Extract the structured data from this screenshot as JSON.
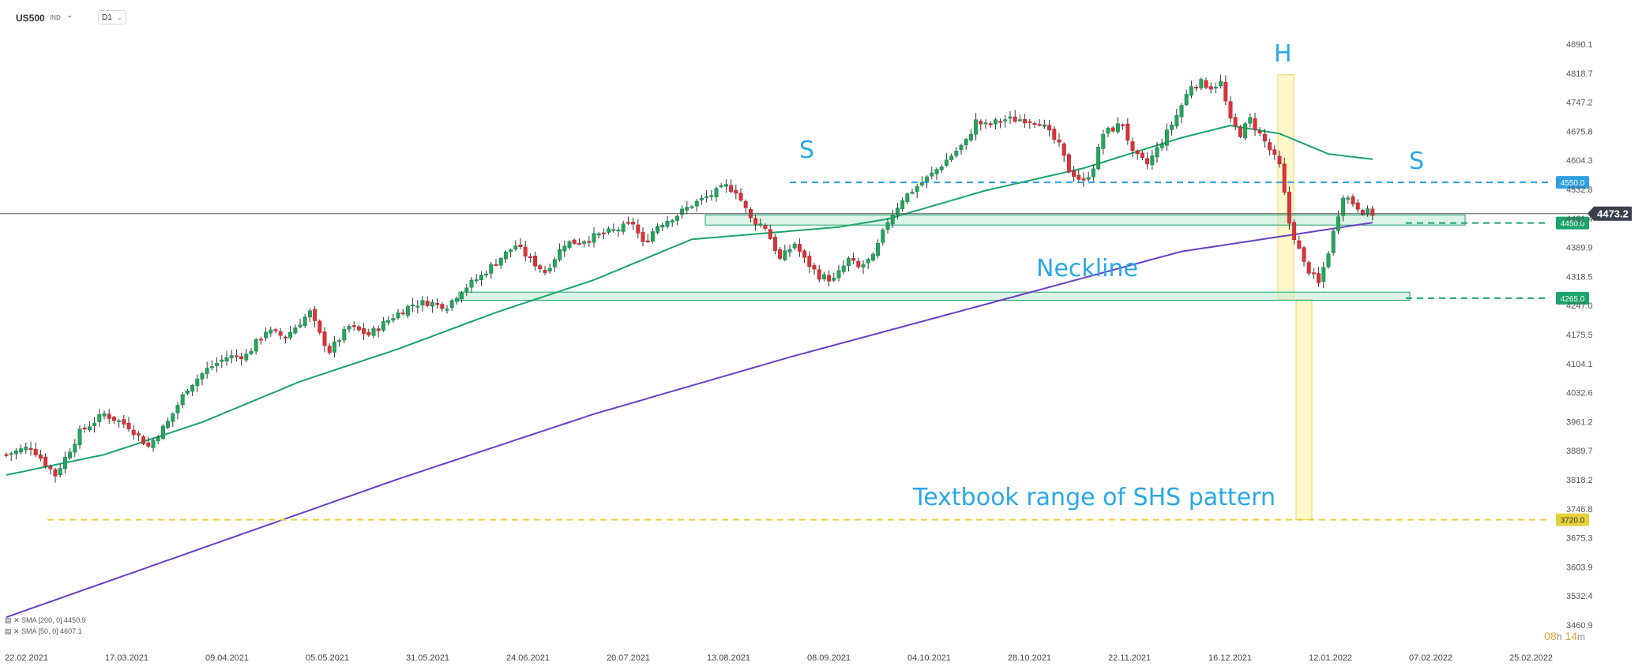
{
  "header": {
    "symbol": "US500",
    "symbol_type": "IND",
    "timeframe": "D1"
  },
  "indicators": [
    {
      "label": "SMA [200, 0]",
      "value": "4450.9",
      "color": "#6a3fc4"
    },
    {
      "label": "SMA [50, 0]",
      "value": "4607.1",
      "color": "#1aa36a"
    }
  ],
  "timer": {
    "hours": "08",
    "h_unit": "h",
    "minutes": "14",
    "m_unit": "m"
  },
  "annotations": {
    "left_shoulder": "S",
    "head": "H",
    "right_shoulder": "S",
    "neckline": "Neckline",
    "range": "Textbook range of SHS pattern"
  },
  "chart_data": {
    "type": "candlestick",
    "symbol": "US500",
    "y_ticks": [
      "4890.1",
      "4818.7",
      "4747.2",
      "4675.8",
      "4604.3",
      "4532.8",
      "4461.4",
      "4389.9",
      "4318.5",
      "4247.0",
      "4175.5",
      "4104.1",
      "4032.6",
      "3961.2",
      "3889.7",
      "3818.2",
      "3746.8",
      "3675.3",
      "3603.9",
      "3532.4",
      "3460.9"
    ],
    "x_ticks": [
      "22.02.2021",
      "17.03.2021",
      "09.04.2021",
      "05.05.2021",
      "31.05.2021",
      "24.06.2021",
      "20.07.2021",
      "13.08.2021",
      "08.09.2021",
      "04.10.2021",
      "28.10.2021",
      "22.11.2021",
      "16.12.2021",
      "12.01.2022",
      "07.02.2022",
      "25.02.2022"
    ],
    "ylim": [
      3460.9,
      4890.1
    ],
    "current_price": {
      "label": "4473.2",
      "value": 4473.2
    },
    "levels": [
      {
        "label": "4550.0",
        "value": 4550.0,
        "color": "#2f9fe0"
      },
      {
        "label": "4450.0",
        "value": 4450.0,
        "color": "#1aa36a"
      },
      {
        "label": "4265.0",
        "value": 4265.0,
        "color": "#1aa36a"
      },
      {
        "label": "3720.0",
        "value": 3720.0,
        "color": "#e8d23a"
      }
    ],
    "zones": [
      {
        "name": "resistance-support-zone",
        "from": 4445,
        "to": 4470
      },
      {
        "name": "neckline-zone",
        "from": 4260,
        "to": 4280
      }
    ],
    "close_series": [
      [
        0,
        3880
      ],
      [
        5,
        3900
      ],
      [
        10,
        3830
      ],
      [
        15,
        3935
      ],
      [
        20,
        3980
      ],
      [
        25,
        3950
      ],
      [
        29,
        3900
      ],
      [
        33,
        3960
      ],
      [
        37,
        4045
      ],
      [
        41,
        4090
      ],
      [
        45,
        4120
      ],
      [
        49,
        4125
      ],
      [
        53,
        4185
      ],
      [
        57,
        4170
      ],
      [
        62,
        4230
      ],
      [
        64,
        4175
      ],
      [
        66,
        4135
      ],
      [
        70,
        4195
      ],
      [
        74,
        4175
      ],
      [
        79,
        4220
      ],
      [
        83,
        4250
      ],
      [
        86,
        4255
      ],
      [
        90,
        4246
      ],
      [
        93,
        4285
      ],
      [
        97,
        4320
      ],
      [
        100,
        4355
      ],
      [
        104,
        4395
      ],
      [
        107,
        4360
      ],
      [
        110,
        4330
      ],
      [
        114,
        4400
      ],
      [
        117,
        4405
      ],
      [
        121,
        4420
      ],
      [
        125,
        4435
      ],
      [
        128,
        4450
      ],
      [
        130,
        4398
      ],
      [
        133,
        4445
      ],
      [
        137,
        4470
      ],
      [
        140,
        4495
      ],
      [
        144,
        4520
      ],
      [
        147,
        4540
      ],
      [
        149,
        4530
      ],
      [
        152,
        4460
      ],
      [
        155,
        4440
      ],
      [
        158,
        4360
      ],
      [
        161,
        4400
      ],
      [
        163,
        4360
      ],
      [
        166,
        4320
      ],
      [
        169,
        4310
      ],
      [
        172,
        4360
      ],
      [
        174,
        4340
      ],
      [
        177,
        4365
      ],
      [
        180,
        4455
      ],
      [
        183,
        4510
      ],
      [
        186,
        4540
      ],
      [
        189,
        4570
      ],
      [
        192,
        4605
      ],
      [
        196,
        4650
      ],
      [
        198,
        4700
      ],
      [
        200,
        4690
      ],
      [
        204,
        4705
      ],
      [
        208,
        4705
      ],
      [
        211,
        4700
      ],
      [
        215,
        4640
      ],
      [
        217,
        4580
      ],
      [
        220,
        4550
      ],
      [
        222,
        4590
      ],
      [
        224,
        4670
      ],
      [
        228,
        4695
      ],
      [
        230,
        4620
      ],
      [
        233,
        4595
      ],
      [
        236,
        4650
      ],
      [
        239,
        4715
      ],
      [
        242,
        4790
      ],
      [
        244,
        4795
      ],
      [
        246,
        4785
      ],
      [
        248,
        4795
      ],
      [
        250,
        4700
      ],
      [
        252,
        4670
      ],
      [
        254,
        4705
      ],
      [
        257,
        4650
      ],
      [
        260,
        4590
      ],
      [
        262,
        4450
      ],
      [
        265,
        4350
      ],
      [
        268,
        4300
      ],
      [
        270,
        4380
      ],
      [
        273,
        4520
      ],
      [
        275,
        4500
      ],
      [
        277,
        4480
      ],
      [
        279,
        4473
      ]
    ],
    "sma_50": [
      [
        0,
        3830
      ],
      [
        20,
        3880
      ],
      [
        40,
        3960
      ],
      [
        60,
        4060
      ],
      [
        80,
        4140
      ],
      [
        100,
        4230
      ],
      [
        120,
        4310
      ],
      [
        140,
        4410
      ],
      [
        160,
        4430
      ],
      [
        170,
        4440
      ],
      [
        180,
        4460
      ],
      [
        200,
        4530
      ],
      [
        220,
        4585
      ],
      [
        240,
        4660
      ],
      [
        250,
        4690
      ],
      [
        260,
        4670
      ],
      [
        270,
        4620
      ],
      [
        279,
        4607
      ]
    ],
    "sma_200": [
      [
        0,
        3480
      ],
      [
        40,
        3650
      ],
      [
        80,
        3820
      ],
      [
        120,
        3980
      ],
      [
        160,
        4120
      ],
      [
        200,
        4250
      ],
      [
        240,
        4380
      ],
      [
        279,
        4451
      ]
    ]
  }
}
